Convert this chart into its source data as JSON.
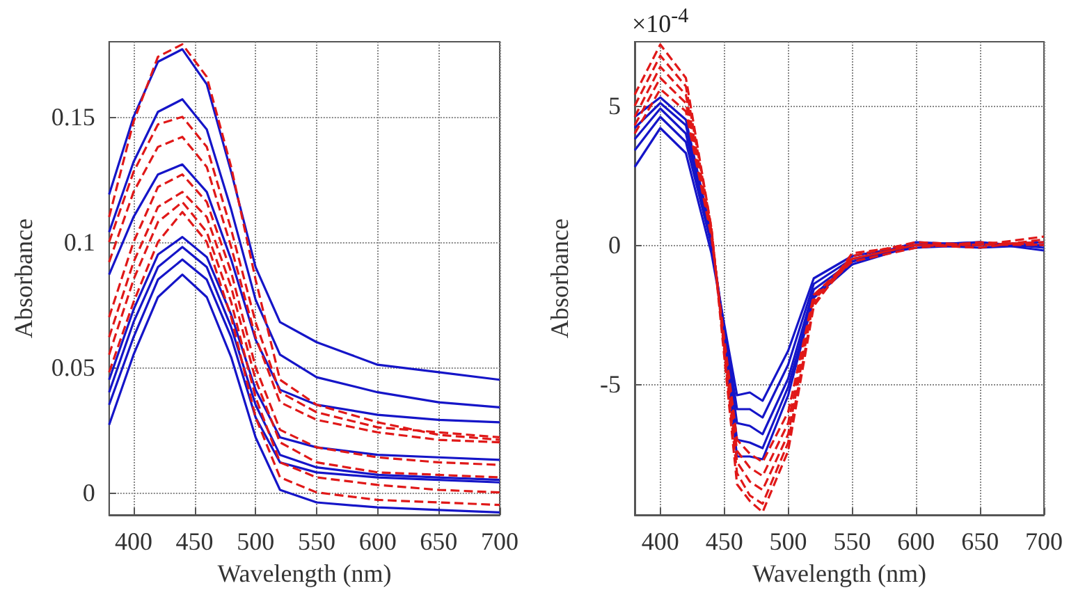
{
  "chart_data": [
    {
      "type": "line",
      "xlabel": "Wavelength (nm)",
      "ylabel": "Absorbance",
      "xlim": [
        380,
        700
      ],
      "xticks": [
        400,
        450,
        500,
        550,
        600,
        650,
        700
      ],
      "ylim": [
        -0.009,
        0.18
      ],
      "yticks": [
        0,
        0.05,
        0.1,
        0.15
      ],
      "grid": true,
      "marker": "none",
      "x": [
        380,
        400,
        420,
        440,
        460,
        480,
        500,
        520,
        550,
        600,
        650,
        700
      ],
      "series": [
        {
          "color": "#1515c8",
          "line_style": "solid",
          "values": [
            0.119,
            0.15,
            0.172,
            0.177,
            0.163,
            0.128,
            0.09,
            0.068,
            0.06,
            0.051,
            0.048,
            0.045
          ]
        },
        {
          "color": "#1515c8",
          "line_style": "solid",
          "values": [
            0.104,
            0.132,
            0.152,
            0.157,
            0.145,
            0.113,
            0.077,
            0.055,
            0.046,
            0.04,
            0.036,
            0.034
          ]
        },
        {
          "color": "#1515c8",
          "line_style": "solid",
          "values": [
            0.087,
            0.11,
            0.127,
            0.131,
            0.12,
            0.093,
            0.061,
            0.041,
            0.035,
            0.031,
            0.029,
            0.028
          ]
        },
        {
          "color": "#1515c8",
          "line_style": "solid",
          "values": [
            0.045,
            0.073,
            0.095,
            0.102,
            0.094,
            0.071,
            0.041,
            0.022,
            0.018,
            0.015,
            0.014,
            0.013
          ]
        },
        {
          "color": "#1515c8",
          "line_style": "solid",
          "values": [
            0.04,
            0.068,
            0.09,
            0.098,
            0.09,
            0.066,
            0.035,
            0.015,
            0.01,
            0.007,
            0.006,
            0.005
          ]
        },
        {
          "color": "#1515c8",
          "line_style": "solid",
          "values": [
            0.035,
            0.062,
            0.085,
            0.093,
            0.085,
            0.062,
            0.03,
            0.012,
            0.008,
            0.006,
            0.005,
            0.004
          ]
        },
        {
          "color": "#1515c8",
          "line_style": "solid",
          "values": [
            0.027,
            0.055,
            0.078,
            0.087,
            0.078,
            0.054,
            0.022,
            0.001,
            -0.004,
            -0.006,
            -0.007,
            -0.008
          ]
        },
        {
          "color": "#e01818",
          "line_style": "dashed",
          "values": [
            0.11,
            0.148,
            0.174,
            0.179,
            0.166,
            0.13,
            0.085,
            0.045,
            0.035,
            0.028,
            0.023,
            0.021
          ]
        },
        {
          "color": "#e01818",
          "line_style": "dashed",
          "values": [
            0.1,
            0.128,
            0.147,
            0.15,
            0.138,
            0.105,
            0.068,
            0.04,
            0.032,
            0.026,
            0.024,
            0.022
          ]
        },
        {
          "color": "#e01818",
          "line_style": "dashed",
          "values": [
            0.092,
            0.12,
            0.138,
            0.142,
            0.13,
            0.098,
            0.062,
            0.036,
            0.029,
            0.024,
            0.021,
            0.02
          ]
        },
        {
          "color": "#e01818",
          "line_style": "dashed",
          "values": [
            0.07,
            0.1,
            0.122,
            0.127,
            0.116,
            0.088,
            0.05,
            0.025,
            0.018,
            0.014,
            0.012,
            0.011
          ]
        },
        {
          "color": "#e01818",
          "line_style": "dashed",
          "values": [
            0.062,
            0.092,
            0.114,
            0.12,
            0.11,
            0.082,
            0.045,
            0.02,
            0.012,
            0.008,
            0.007,
            0.006
          ]
        },
        {
          "color": "#e01818",
          "line_style": "dashed",
          "values": [
            0.055,
            0.085,
            0.108,
            0.116,
            0.104,
            0.076,
            0.038,
            0.012,
            0.006,
            0.003,
            0.001,
            0.0
          ]
        },
        {
          "color": "#e01818",
          "line_style": "dashed",
          "values": [
            0.048,
            0.076,
            0.1,
            0.112,
            0.1,
            0.07,
            0.03,
            0.006,
            0.0,
            -0.003,
            -0.004,
            -0.005
          ]
        }
      ]
    },
    {
      "type": "line",
      "xlabel": "Wavelength (nm)",
      "ylabel": "Absorbance",
      "annotations": [
        "×10$^{-4}$"
      ],
      "xlim": [
        380,
        700
      ],
      "xticks": [
        400,
        450,
        500,
        550,
        600,
        650,
        700
      ],
      "ylim": [
        -9.7,
        7.3
      ],
      "yticks": [
        -5,
        0,
        5
      ],
      "grid": true,
      "marker": "none",
      "x": [
        380,
        400,
        420,
        440,
        460,
        470,
        480,
        500,
        520,
        550,
        600,
        650,
        700
      ],
      "series": [
        {
          "color": "#1515c8",
          "line_style": "solid",
          "values": [
            2.8,
            4.2,
            3.3,
            -0.3,
            -5.4,
            -5.3,
            -5.6,
            -3.8,
            -1.2,
            -0.4,
            0.0,
            0.1,
            -0.2
          ]
        },
        {
          "color": "#1515c8",
          "line_style": "solid",
          "values": [
            3.4,
            4.6,
            3.7,
            0.0,
            -5.9,
            -5.9,
            -6.2,
            -4.3,
            -1.4,
            -0.5,
            -0.1,
            0.0,
            0.1
          ]
        },
        {
          "color": "#1515c8",
          "line_style": "solid",
          "values": [
            3.8,
            4.9,
            4.0,
            0.2,
            -6.4,
            -6.5,
            -6.8,
            -4.8,
            -1.6,
            -0.6,
            0.0,
            -0.1,
            0.0
          ]
        },
        {
          "color": "#1515c8",
          "line_style": "solid",
          "values": [
            4.2,
            5.1,
            4.3,
            0.3,
            -7.0,
            -7.1,
            -7.3,
            -5.1,
            -1.8,
            -0.6,
            0.1,
            0.0,
            0.0
          ]
        },
        {
          "color": "#1515c8",
          "line_style": "solid",
          "values": [
            4.6,
            5.3,
            4.5,
            0.4,
            -7.6,
            -7.6,
            -7.7,
            -5.4,
            -1.9,
            -0.7,
            0.0,
            0.1,
            -0.1
          ]
        },
        {
          "color": "#e01818",
          "line_style": "dashed",
          "values": [
            4.0,
            5.6,
            4.8,
            0.3,
            -7.0,
            -7.5,
            -7.8,
            -6.0,
            -1.8,
            -0.5,
            0.0,
            0.0,
            0.1
          ]
        },
        {
          "color": "#e01818",
          "line_style": "dashed",
          "values": [
            4.3,
            6.0,
            5.1,
            0.4,
            -7.4,
            -8.0,
            -8.3,
            -6.4,
            -1.9,
            -0.6,
            -0.1,
            0.1,
            0.0
          ]
        },
        {
          "color": "#e01818",
          "line_style": "dashed",
          "values": [
            4.6,
            6.4,
            5.4,
            0.5,
            -7.8,
            -8.5,
            -8.8,
            -6.8,
            -2.0,
            -0.4,
            0.1,
            0.0,
            0.0
          ]
        },
        {
          "color": "#e01818",
          "line_style": "dashed",
          "values": [
            5.0,
            6.8,
            5.7,
            0.6,
            -8.2,
            -9.0,
            -9.3,
            -7.1,
            -2.1,
            -0.5,
            0.0,
            -0.1,
            0.2
          ]
        },
        {
          "color": "#e01818",
          "line_style": "dashed",
          "values": [
            5.4,
            7.2,
            6.0,
            0.6,
            -8.6,
            -9.2,
            -9.6,
            -7.4,
            -2.2,
            -0.3,
            0.0,
            0.0,
            0.3
          ]
        }
      ]
    }
  ]
}
